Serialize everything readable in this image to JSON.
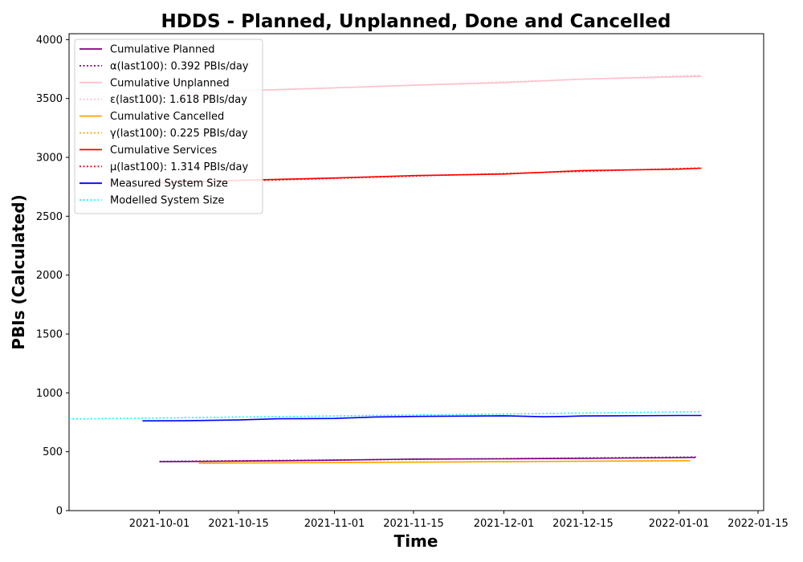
{
  "chart_data": {
    "type": "line",
    "title": "HDDS - Planned, Unplanned, Done  and Cancelled",
    "xlabel": "Time",
    "ylabel": "PBIs (Calculated)",
    "xlim": [
      "2021-09-15",
      "2022-01-16"
    ],
    "ylim": [
      0,
      4050
    ],
    "x_ticks": [
      "2021-10-01",
      "2021-10-15",
      "2021-11-01",
      "2021-11-15",
      "2021-12-01",
      "2021-12-15",
      "2022-01-01",
      "2022-01-15"
    ],
    "y_ticks": [
      0,
      500,
      1000,
      1500,
      2000,
      2500,
      3000,
      3500,
      4000
    ],
    "grid": false,
    "legend_position": "top-left",
    "series": [
      {
        "name": "Cumulative Planned",
        "color": "#800080",
        "style": "solid",
        "x": [
          "2021-10-01",
          "2021-10-15",
          "2021-11-01",
          "2021-11-15",
          "2021-12-01",
          "2021-12-15",
          "2022-01-01",
          "2022-01-04"
        ],
        "y": [
          415,
          421,
          428,
          438,
          440,
          444,
          450,
          452
        ]
      },
      {
        "name": "α(last100): 0.392 PBIs/day",
        "color": "#800080",
        "style": "dotted",
        "x": [
          "2021-10-01",
          "2022-01-04"
        ],
        "y": [
          418,
          455
        ]
      },
      {
        "name": "Cumulative Unplanned",
        "color": "#ffc0cb",
        "style": "solid",
        "x": [
          "2021-10-01",
          "2021-10-15",
          "2021-11-01",
          "2021-11-15",
          "2021-12-01",
          "2021-12-15",
          "2022-01-01",
          "2022-01-05"
        ],
        "y": [
          3545,
          3565,
          3590,
          3612,
          3635,
          3665,
          3684,
          3687
        ]
      },
      {
        "name": "ε(last100): 1.618 PBIs/day",
        "color": "#ffc0cb",
        "style": "dotted",
        "x": [
          "2021-10-01",
          "2022-01-05"
        ],
        "y": [
          3540,
          3698
        ]
      },
      {
        "name": "Cumulative Cancelled",
        "color": "#ffa500",
        "style": "solid",
        "x": [
          "2021-10-08",
          "2021-10-15",
          "2021-11-01",
          "2021-11-15",
          "2021-12-01",
          "2021-12-15",
          "2022-01-01",
          "2022-01-03"
        ],
        "y": [
          402,
          404,
          408,
          411,
          415,
          419,
          423,
          424
        ]
      },
      {
        "name": "γ(last100): 0.225 PBIs/day",
        "color": "#ffa500",
        "style": "dotted",
        "x": [
          "2021-10-08",
          "2022-01-03"
        ],
        "y": [
          403,
          425
        ]
      },
      {
        "name": "Cumulative Services",
        "color": "#ff0000",
        "style": "solid",
        "x": [
          "2021-10-01",
          "2021-10-15",
          "2021-11-01",
          "2021-11-15",
          "2021-12-01",
          "2021-12-15",
          "2022-01-01",
          "2022-01-05"
        ],
        "y": [
          2785,
          2805,
          2825,
          2845,
          2858,
          2888,
          2900,
          2908
        ]
      },
      {
        "name": "μ(last100): 1.314 PBIs/day",
        "color": "#ff0000",
        "style": "dotted",
        "x": [
          "2021-10-01",
          "2022-01-05"
        ],
        "y": [
          2780,
          2910
        ]
      },
      {
        "name": "Measured System Size",
        "color": "#0000ff",
        "style": "solid",
        "x": [
          "2021-09-28",
          "2021-10-05",
          "2021-10-15",
          "2021-10-22",
          "2021-11-01",
          "2021-11-08",
          "2021-11-15",
          "2021-12-01",
          "2021-12-08",
          "2021-12-12",
          "2021-12-15",
          "2022-01-01",
          "2022-01-05"
        ],
        "y": [
          762,
          763,
          770,
          780,
          783,
          795,
          800,
          805,
          797,
          800,
          804,
          808,
          808
        ]
      },
      {
        "name": "Modelled System Size",
        "color": "#00ffff",
        "style": "dotted",
        "x": [
          "2021-09-15",
          "2022-01-05"
        ],
        "y": [
          778,
          840
        ]
      }
    ]
  }
}
